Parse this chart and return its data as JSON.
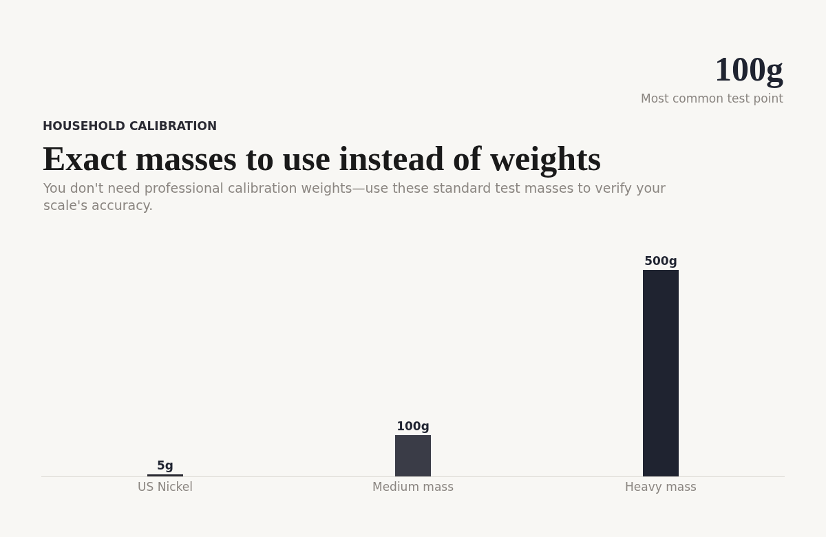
{
  "chart_data": {
    "type": "bar",
    "title": "Exact masses to use instead of weights",
    "subtitle": "You don't need professional calibration weights—use these standard test masses to verify your scale's accuracy.",
    "annotations": [
      "HOUSEHOLD CALIBRATION",
      "100g",
      "Most common test point"
    ],
    "categories": [
      "US Nickel",
      "Medium mass",
      "Heavy mass"
    ],
    "values": [
      5,
      100,
      500
    ],
    "value_labels": [
      "5g",
      "100g",
      "500g"
    ],
    "colors": [
      "#2a2a33",
      "#3a3c47",
      "#1f2330"
    ],
    "grid": false
  }
}
